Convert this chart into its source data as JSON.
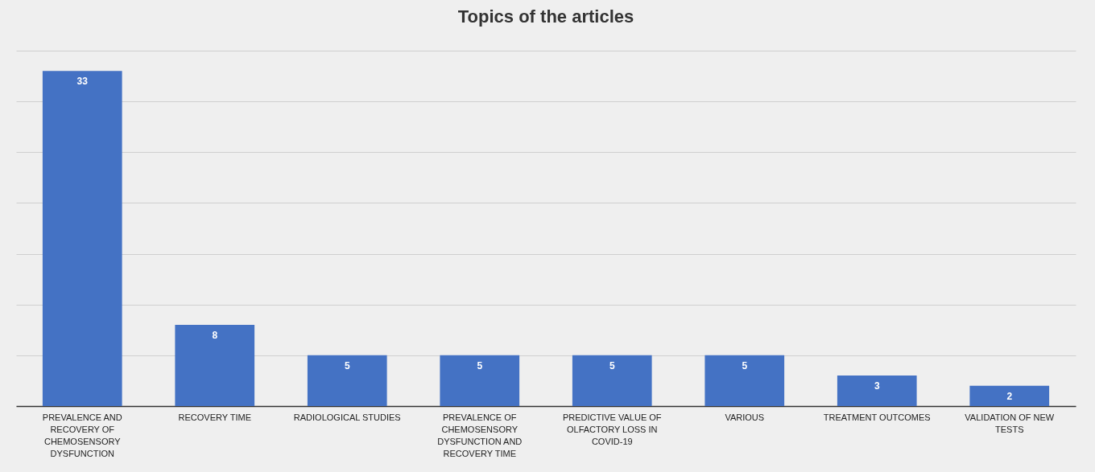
{
  "chart_data": {
    "type": "bar",
    "title": "Topics of the articles",
    "categories": [
      "PREVALENCE AND RECOVERY OF CHEMOSENSORY DYSFUNCTION",
      "RECOVERY TIME",
      "RADIOLOGICAL STUDIES",
      "PREVALENCE OF CHEMOSENSORY DYSFUNCTION AND RECOVERY TIME",
      "PREDICTIVE VALUE OF OLFACTORY LOSS IN COVID-19",
      "VARIOUS",
      "TREATMENT OUTCOMES",
      "VALIDATION OF NEW TESTS"
    ],
    "values": [
      33,
      8,
      5,
      5,
      5,
      5,
      3,
      2
    ],
    "color": "#4472c4",
    "ylim": [
      0,
      35
    ],
    "yticks": [
      {
        "value": 0,
        "label": null
      },
      {
        "value": 5,
        "label": null
      },
      {
        "value": 10,
        "label": null
      },
      {
        "value": 15,
        "label": null
      },
      {
        "value": 20,
        "label": null
      },
      {
        "value": 25,
        "label": null
      },
      {
        "value": 30,
        "label": null
      },
      {
        "value": 35,
        "label": null
      }
    ],
    "tick_labels": "x",
    "grid": "y",
    "data_labels": true
  }
}
